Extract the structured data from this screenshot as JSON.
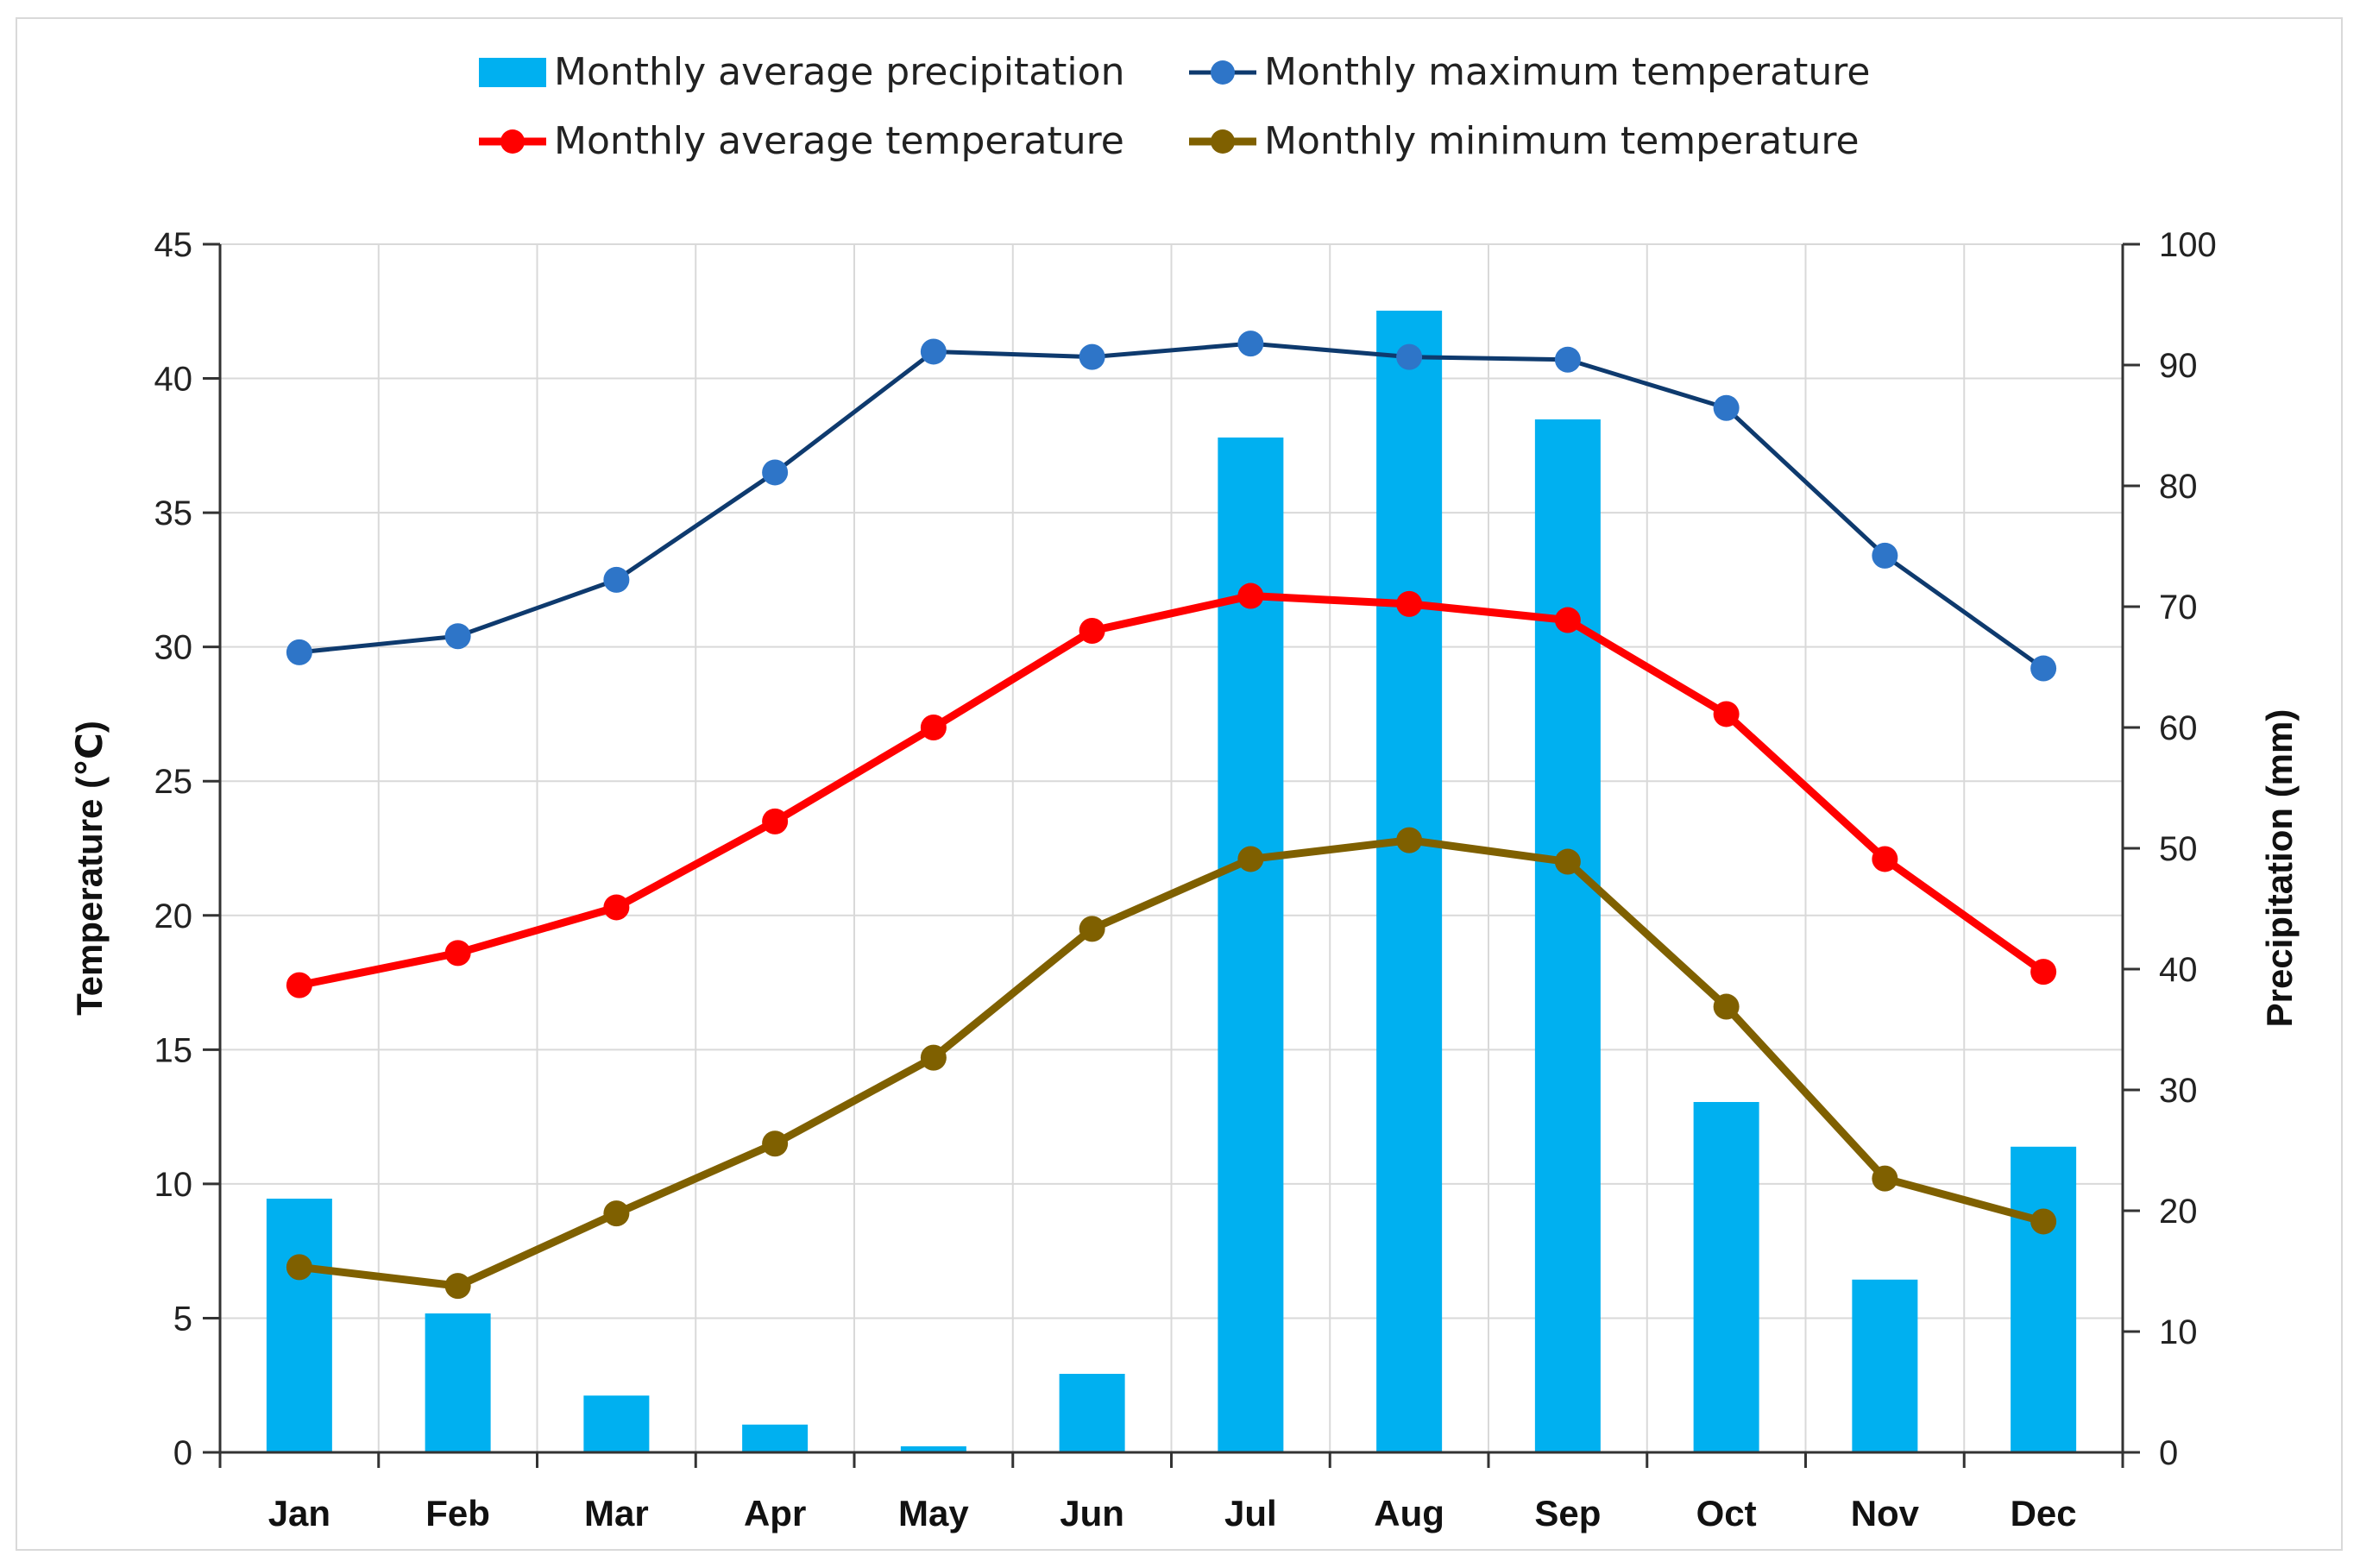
{
  "chart_data": {
    "type": "bar",
    "categories": [
      "Jan",
      "Feb",
      "Mar",
      "Apr",
      "May",
      "Jun",
      "Jul",
      "Aug",
      "Sep",
      "Oct",
      "Nov",
      "Dec"
    ],
    "left_axis": {
      "label": "Temperature (℃)",
      "range": [
        0,
        45
      ],
      "ticks": [
        "0",
        "5",
        "10",
        "15",
        "20",
        "25",
        "30",
        "35",
        "40",
        "45"
      ]
    },
    "right_axis": {
      "label": "Precipitation (mm)",
      "range": [
        0,
        100
      ],
      "ticks": [
        "0",
        "10",
        "20",
        "30",
        "40",
        "50",
        "60",
        "70",
        "80",
        "90",
        "100"
      ]
    },
    "grid": true,
    "legend_position": "top",
    "series": [
      {
        "name": "Monthly average precipitation",
        "type": "bar",
        "axis": "right",
        "color": "#00b0f0",
        "values": [
          21,
          11.5,
          4.7,
          2.3,
          0.5,
          6.5,
          84,
          94.5,
          85.5,
          29,
          14.3,
          25.3
        ]
      },
      {
        "name": "Monthly maximum temperature",
        "type": "line",
        "axis": "left",
        "color": "#0e3a6e",
        "marker_color": "#2e75c8",
        "values": [
          29.8,
          30.4,
          32.5,
          36.5,
          41.0,
          40.8,
          41.3,
          40.8,
          40.7,
          38.9,
          33.4,
          29.2
        ]
      },
      {
        "name": "Monthly average temperature",
        "type": "line",
        "axis": "left",
        "color": "#ff0000",
        "values": [
          17.4,
          18.6,
          20.3,
          23.5,
          27.0,
          30.6,
          31.9,
          31.6,
          31.0,
          27.5,
          22.1,
          17.9
        ]
      },
      {
        "name": "Monthly minimum temperature",
        "type": "line",
        "axis": "left",
        "color": "#7f6000",
        "values": [
          6.9,
          6.2,
          8.9,
          11.5,
          14.7,
          19.5,
          22.1,
          22.8,
          22.0,
          16.6,
          10.2,
          8.6
        ]
      }
    ]
  }
}
